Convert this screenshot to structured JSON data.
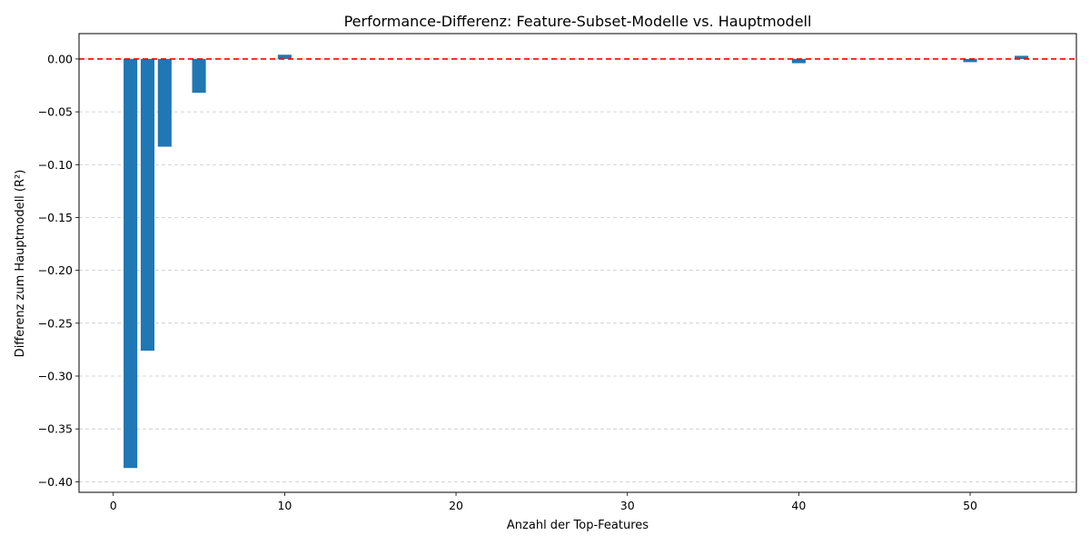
{
  "chart_data": {
    "type": "bar",
    "title": "Performance-Differenz: Feature-Subset-Modelle vs. Hauptmodell",
    "xlabel": "Anzahl der Top-Features",
    "ylabel": "Differenz zum Hauptmodell (R²)",
    "x": [
      1,
      2,
      3,
      5,
      10,
      15,
      20,
      30,
      40,
      50,
      53
    ],
    "values": [
      -0.387,
      -0.276,
      -0.083,
      -0.032,
      0.004,
      0.0,
      0.0,
      0.0,
      -0.004,
      -0.003,
      0.003
    ],
    "xlim": [
      -2,
      56.2
    ],
    "ylim": [
      -0.41,
      0.024
    ],
    "xticks": [
      0,
      10,
      20,
      30,
      40,
      50
    ],
    "xtick_labels": [
      "0",
      "10",
      "20",
      "30",
      "40",
      "50"
    ],
    "yticks": [
      0.0,
      -0.05,
      -0.1,
      -0.15,
      -0.2,
      -0.25,
      -0.3,
      -0.35,
      -0.4
    ],
    "ytick_labels": [
      "0.00",
      "−0.05",
      "−0.10",
      "−0.15",
      "−0.20",
      "−0.25",
      "−0.30",
      "−0.35",
      "−0.40"
    ],
    "bar_color": "#1f77b4",
    "reference_line": {
      "y": 0,
      "color": "#ff0000",
      "style": "dashed"
    },
    "grid": "y-dashed"
  }
}
